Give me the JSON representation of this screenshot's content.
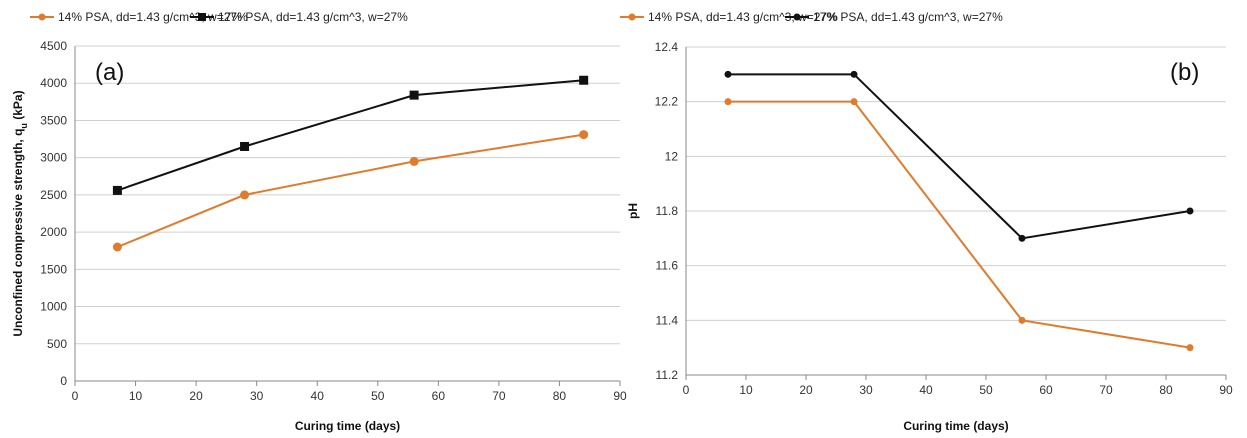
{
  "chart_data": [
    {
      "type": "line",
      "panel_label": "(a)",
      "xlabel": "Curing time (days)",
      "ylabel": "Unconfined compressive strength, q",
      "ylabel_sub": "u",
      "ylabel_unit": " (kPa)",
      "xlim": [
        0,
        90
      ],
      "ylim": [
        0,
        4500
      ],
      "xticks": [
        0,
        10,
        20,
        30,
        40,
        50,
        60,
        70,
        80,
        90
      ],
      "yticks": [
        0,
        500,
        1000,
        1500,
        2000,
        2500,
        3000,
        3500,
        4000,
        4500
      ],
      "grid": "horizontal",
      "legend_position": "top",
      "series": [
        {
          "name": "14% PSA, dd=1.43 g/cm^3, w=27%",
          "color": "#e07b2e",
          "marker": "circle",
          "x": [
            7,
            28,
            56,
            84
          ],
          "y": [
            1800,
            2500,
            2950,
            3310
          ]
        },
        {
          "name": "17% PSA, dd=1.43 g/cm^3, w=27%",
          "color": "#111111",
          "marker": "square",
          "x": [
            7,
            28,
            56,
            84
          ],
          "y": [
            2560,
            3150,
            3840,
            4040
          ]
        }
      ]
    },
    {
      "type": "line",
      "panel_label": "(b)",
      "xlabel": "Curing time (days)",
      "ylabel": "pH",
      "ylabel_sub": "",
      "ylabel_unit": "",
      "xlim": [
        0,
        90
      ],
      "ylim": [
        11.2,
        12.4
      ],
      "xticks": [
        0,
        10,
        20,
        30,
        40,
        50,
        60,
        70,
        80,
        90
      ],
      "yticks": [
        11.2,
        11.4,
        11.6,
        11.8,
        12,
        12.2,
        12.4
      ],
      "grid": "horizontal",
      "legend_position": "top",
      "series": [
        {
          "name": "14% PSA, dd=1.43 g/cm^3, w=27%",
          "color": "#e07b2e",
          "marker": "circle",
          "x": [
            7,
            28,
            56,
            84
          ],
          "y": [
            12.2,
            12.2,
            11.4,
            11.3
          ]
        },
        {
          "name": "17% PSA, dd=1.43 g/cm^3, w=27%",
          "color": "#111111",
          "marker": "circle",
          "x": [
            7,
            28,
            56,
            84
          ],
          "y": [
            12.3,
            12.3,
            11.7,
            11.8
          ]
        }
      ]
    }
  ]
}
